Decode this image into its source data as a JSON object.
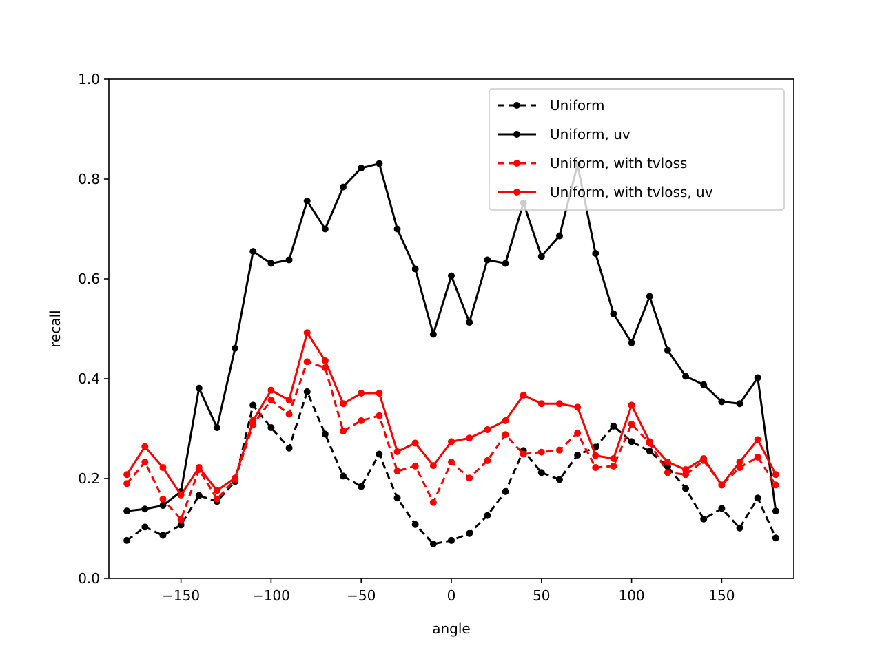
{
  "chart_data": {
    "type": "line",
    "title": "",
    "xlabel": "angle",
    "ylabel": "recall",
    "xlim": [
      -190,
      190
    ],
    "ylim": [
      0.0,
      1.0
    ],
    "xticks": [
      -150,
      -100,
      -50,
      0,
      50,
      100,
      150
    ],
    "xtick_labels": [
      "−150",
      "−100",
      "−50",
      "0",
      "50",
      "100",
      "150"
    ],
    "yticks": [
      0.0,
      0.2,
      0.4,
      0.6,
      0.8,
      1.0
    ],
    "ytick_labels": [
      "0.0",
      "0.2",
      "0.4",
      "0.6",
      "0.8",
      "1.0"
    ],
    "grid": false,
    "legend_position": "top-right",
    "x": [
      -180,
      -170,
      -160,
      -150,
      -140,
      -130,
      -120,
      -110,
      -100,
      -90,
      -80,
      -70,
      -60,
      -50,
      -40,
      -30,
      -20,
      -10,
      0,
      10,
      20,
      30,
      40,
      50,
      60,
      70,
      80,
      90,
      100,
      110,
      120,
      130,
      140,
      150,
      160,
      170,
      180
    ],
    "series": [
      {
        "name": "Uniform",
        "color": "#000000",
        "dashed": true,
        "values": [
          0.076,
          0.103,
          0.086,
          0.107,
          0.166,
          0.154,
          0.194,
          0.347,
          0.302,
          0.261,
          0.374,
          0.289,
          0.205,
          0.184,
          0.249,
          0.161,
          0.108,
          0.069,
          0.076,
          0.09,
          0.126,
          0.174,
          0.256,
          0.212,
          0.198,
          0.247,
          0.263,
          0.305,
          0.274,
          0.255,
          0.224,
          0.18,
          0.119,
          0.14,
          0.101,
          0.161,
          0.081
        ]
      },
      {
        "name": "Uniform, uv",
        "color": "#000000",
        "dashed": false,
        "values": [
          0.135,
          0.139,
          0.146,
          0.174,
          0.381,
          0.302,
          0.461,
          0.655,
          0.631,
          0.638,
          0.756,
          0.7,
          0.784,
          0.822,
          0.831,
          0.7,
          0.62,
          0.489,
          0.606,
          0.513,
          0.638,
          0.631,
          0.752,
          0.645,
          0.686,
          0.829,
          0.651,
          0.53,
          0.472,
          0.565,
          0.457,
          0.405,
          0.388,
          0.354,
          0.35,
          0.402,
          0.135
        ]
      },
      {
        "name": "Uniform, with tvloss",
        "color": "#ff0000",
        "dashed": true,
        "values": [
          0.19,
          0.233,
          0.159,
          0.118,
          0.218,
          0.159,
          0.198,
          0.308,
          0.357,
          0.329,
          0.434,
          0.422,
          0.295,
          0.316,
          0.326,
          0.215,
          0.225,
          0.152,
          0.233,
          0.201,
          0.236,
          0.288,
          0.249,
          0.253,
          0.257,
          0.291,
          0.222,
          0.225,
          0.309,
          0.271,
          0.212,
          0.208,
          0.236,
          0.187,
          0.222,
          0.243,
          0.187
        ]
      },
      {
        "name": "Uniform, with tvloss, uv",
        "color": "#ff0000",
        "dashed": false,
        "values": [
          0.208,
          0.264,
          0.222,
          0.167,
          0.222,
          0.176,
          0.201,
          0.316,
          0.377,
          0.357,
          0.492,
          0.436,
          0.35,
          0.371,
          0.371,
          0.254,
          0.271,
          0.226,
          0.274,
          0.281,
          0.298,
          0.316,
          0.367,
          0.35,
          0.35,
          0.343,
          0.246,
          0.24,
          0.347,
          0.274,
          0.233,
          0.218,
          0.24,
          0.187,
          0.233,
          0.278,
          0.208
        ]
      }
    ]
  }
}
